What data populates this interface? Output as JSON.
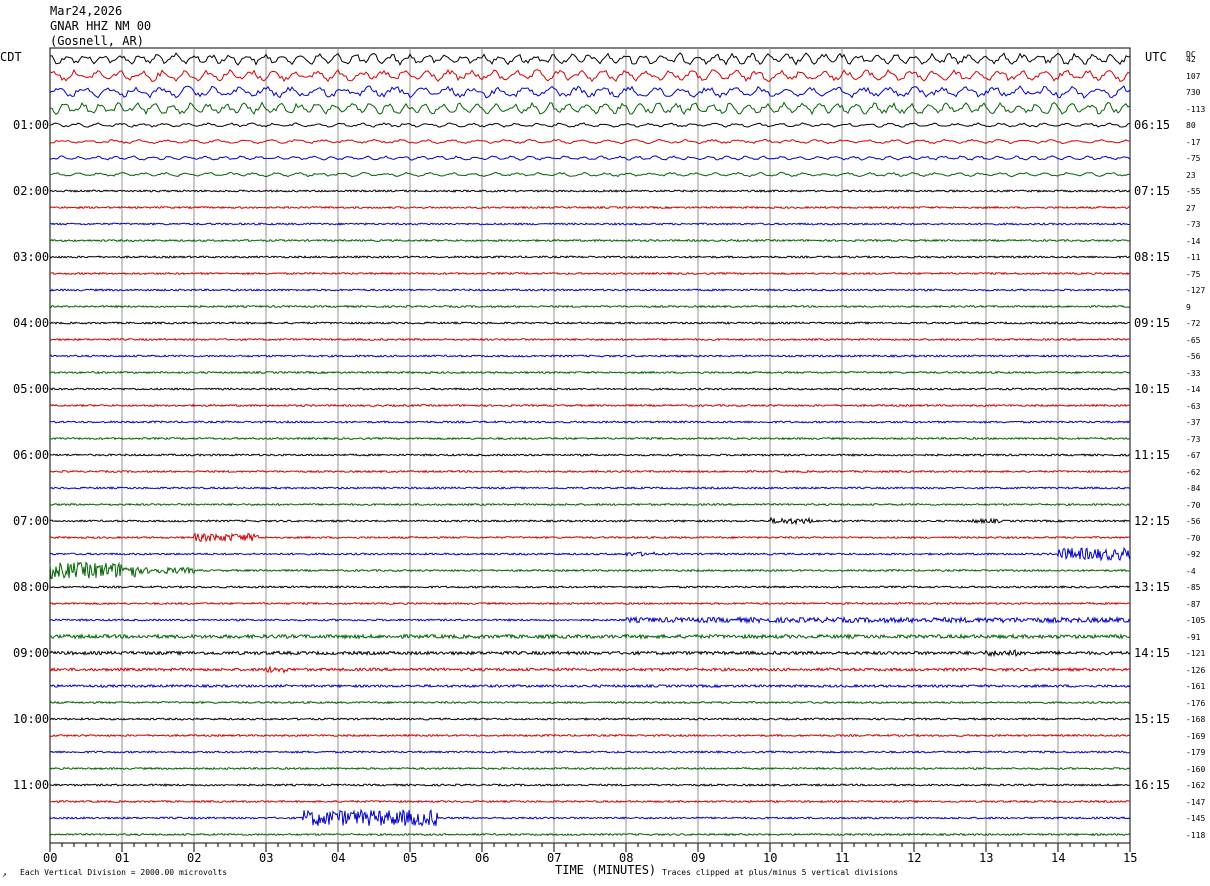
{
  "header": {
    "date": "Mar24,2026",
    "station": "GNAR HHZ NM 00",
    "location": "(Gosnell, AR)"
  },
  "left_zone_label": "CDT",
  "right_zone_label": "UTC",
  "dc_label": "DC",
  "colors": {
    "row_cycle": [
      "#000000",
      "#d40000",
      "#0000c8",
      "#006400"
    ],
    "grid": "#909090",
    "frame": "#000000"
  },
  "footer": {
    "x_axis_label": "TIME (MINUTES)",
    "scale_note": "Each Vertical Division = 2000.00 microvolts",
    "clip_note": "Traces clipped at plus/minus 5 vertical divisions",
    "corner_mark": "↗"
  },
  "chart_data": {
    "type": "line",
    "x_axis": {
      "ticks": [
        "00",
        "01",
        "02",
        "03",
        "04",
        "05",
        "06",
        "07",
        "08",
        "09",
        "10",
        "11",
        "12",
        "13",
        "14",
        "15"
      ],
      "range": [
        0,
        15
      ],
      "unit": "minutes"
    },
    "cdt_hour_labels": [
      "01:00",
      "02:00",
      "03:00",
      "04:00",
      "05:00",
      "06:00",
      "07:00",
      "08:00",
      "09:00",
      "10:00",
      "11:00"
    ],
    "utc_hour_labels": [
      "06:15",
      "07:15",
      "08:15",
      "09:15",
      "10:15",
      "11:15",
      "12:15",
      "13:15",
      "14:15",
      "15:15",
      "16:15"
    ],
    "dc_offsets": [
      "42",
      "107",
      "730",
      "-113",
      "80",
      "-17",
      "-75",
      "23",
      "-55",
      "27",
      "-73",
      "-14",
      "-11",
      "-75",
      "-127",
      "9",
      "-72",
      "-65",
      "-56",
      "-33",
      "-14",
      "-63",
      "-37",
      "-73",
      "-67",
      "-62",
      "-84",
      "-70",
      "-56",
      "-70",
      "-92",
      "-4",
      "-85",
      "-87",
      "-105",
      "-91",
      "-121",
      "-126",
      "-161",
      "-176",
      "-168",
      "-169",
      "-179",
      "-160",
      "-162",
      "-147",
      "-145",
      "-118"
    ],
    "rows_per_hour": 4,
    "minutes_per_row": 15,
    "grid": true
  }
}
